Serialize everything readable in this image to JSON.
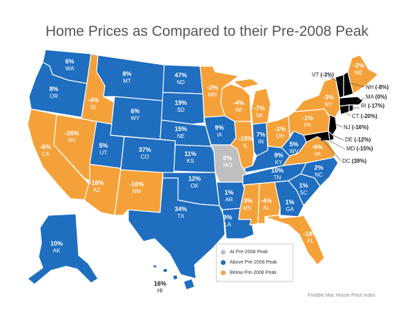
{
  "title": "Home Prices as Compared to their Pre-2008 Peak",
  "colors": {
    "above": "#1f6ec0",
    "below": "#f5a13a",
    "at": "#bfbfbf"
  },
  "legend": [
    {
      "key": "at",
      "label": "At Pre-2008 Peak"
    },
    {
      "key": "above",
      "label": "Above Pre-2008 Peak"
    },
    {
      "key": "below",
      "label": "Below Pre-2008 Peak"
    }
  ],
  "source": "Freddie Mac House Price Index",
  "states": {
    "WA": {
      "abbr": "WA",
      "value": "6%",
      "status": "above"
    },
    "OR": {
      "abbr": "OR",
      "value": "8%",
      "status": "above"
    },
    "CA": {
      "abbr": "CA",
      "value": "-6%",
      "status": "below"
    },
    "NV": {
      "abbr": "NV",
      "value": "-26%",
      "status": "below"
    },
    "ID": {
      "abbr": "ID",
      "value": "-4%",
      "status": "below"
    },
    "MT": {
      "abbr": "MT",
      "value": "8%",
      "status": "above"
    },
    "WY": {
      "abbr": "WY",
      "value": "6%",
      "status": "above"
    },
    "UT": {
      "abbr": "UT",
      "value": "5%",
      "status": "above"
    },
    "AZ": {
      "abbr": "AZ",
      "value": "-18%",
      "status": "below"
    },
    "CO": {
      "abbr": "CO",
      "value": "37%",
      "status": "above"
    },
    "NM": {
      "abbr": "NM",
      "value": "-10%",
      "status": "below"
    },
    "ND": {
      "abbr": "ND",
      "value": "47%",
      "status": "above"
    },
    "SD": {
      "abbr": "SD",
      "value": "19%",
      "status": "above"
    },
    "NE": {
      "abbr": "NE",
      "value": "15%",
      "status": "above"
    },
    "KS": {
      "abbr": "KS",
      "value": "11%",
      "status": "above"
    },
    "OK": {
      "abbr": "OK",
      "value": "12%",
      "status": "above"
    },
    "TX": {
      "abbr": "TX",
      "value": "34%",
      "status": "above"
    },
    "MN": {
      "abbr": "MN",
      "value": "-2%",
      "status": "below"
    },
    "IA": {
      "abbr": "IA",
      "value": "9%",
      "status": "above"
    },
    "MO": {
      "abbr": "MO",
      "value": "0%",
      "status": "at"
    },
    "AR": {
      "abbr": "AR",
      "value": "1%",
      "status": "above"
    },
    "LA": {
      "abbr": "LA",
      "value": "9%",
      "status": "above"
    },
    "WI": {
      "abbr": "WI",
      "value": "-4%",
      "status": "below"
    },
    "IL": {
      "abbr": "IL",
      "value": "-15%",
      "status": "below"
    },
    "MI": {
      "abbr": "MI",
      "value": "-7%",
      "status": "below"
    },
    "IN": {
      "abbr": "IN",
      "value": "7%",
      "status": "above"
    },
    "OH": {
      "abbr": "OH",
      "value": "-1%",
      "status": "below"
    },
    "KY": {
      "abbr": "KY",
      "value": "9%",
      "status": "above"
    },
    "TN": {
      "abbr": "TN",
      "value": "10%",
      "status": "above"
    },
    "MS": {
      "abbr": "MS",
      "value": "-3%",
      "status": "below"
    },
    "AL": {
      "abbr": "AL",
      "value": "-4%",
      "status": "below"
    },
    "GA": {
      "abbr": "GA",
      "value": "1%",
      "status": "above"
    },
    "FL": {
      "abbr": "FL",
      "value": "-18%",
      "status": "below"
    },
    "SC": {
      "abbr": "SC",
      "value": "1%",
      "status": "above"
    },
    "NC": {
      "abbr": "NC",
      "value": "2%",
      "status": "above"
    },
    "VA": {
      "abbr": "VA",
      "value": "-6%",
      "status": "below"
    },
    "WV": {
      "abbr": "WV",
      "value": "5%",
      "status": "above"
    },
    "PA": {
      "abbr": "PA",
      "value": "-1%",
      "status": "below"
    },
    "NY": {
      "abbr": "NY",
      "value": "-3%",
      "status": "below"
    },
    "ME": {
      "abbr": "ME",
      "value": "-2%",
      "status": "below"
    },
    "AK": {
      "abbr": "AK",
      "value": "10%",
      "status": "above"
    },
    "HI": {
      "abbr": "HI",
      "value": "16%",
      "status": "above"
    }
  },
  "callouts": {
    "VT": {
      "abbr": "VT",
      "value": "(-3%)"
    },
    "NH": {
      "abbr": "NH",
      "value": "(-8%)"
    },
    "MA": {
      "abbr": "MA",
      "value": "(0%)"
    },
    "RI": {
      "abbr": "RI",
      "value": "(-17%)"
    },
    "CT": {
      "abbr": "CT",
      "value": "(-20%)"
    },
    "NJ": {
      "abbr": "NJ",
      "value": "(-16%)"
    },
    "DE": {
      "abbr": "DE",
      "value": "(-12%)"
    },
    "MD": {
      "abbr": "MD",
      "value": "(-15%)"
    },
    "DC": {
      "abbr": "DC",
      "value": "(39%)"
    }
  }
}
